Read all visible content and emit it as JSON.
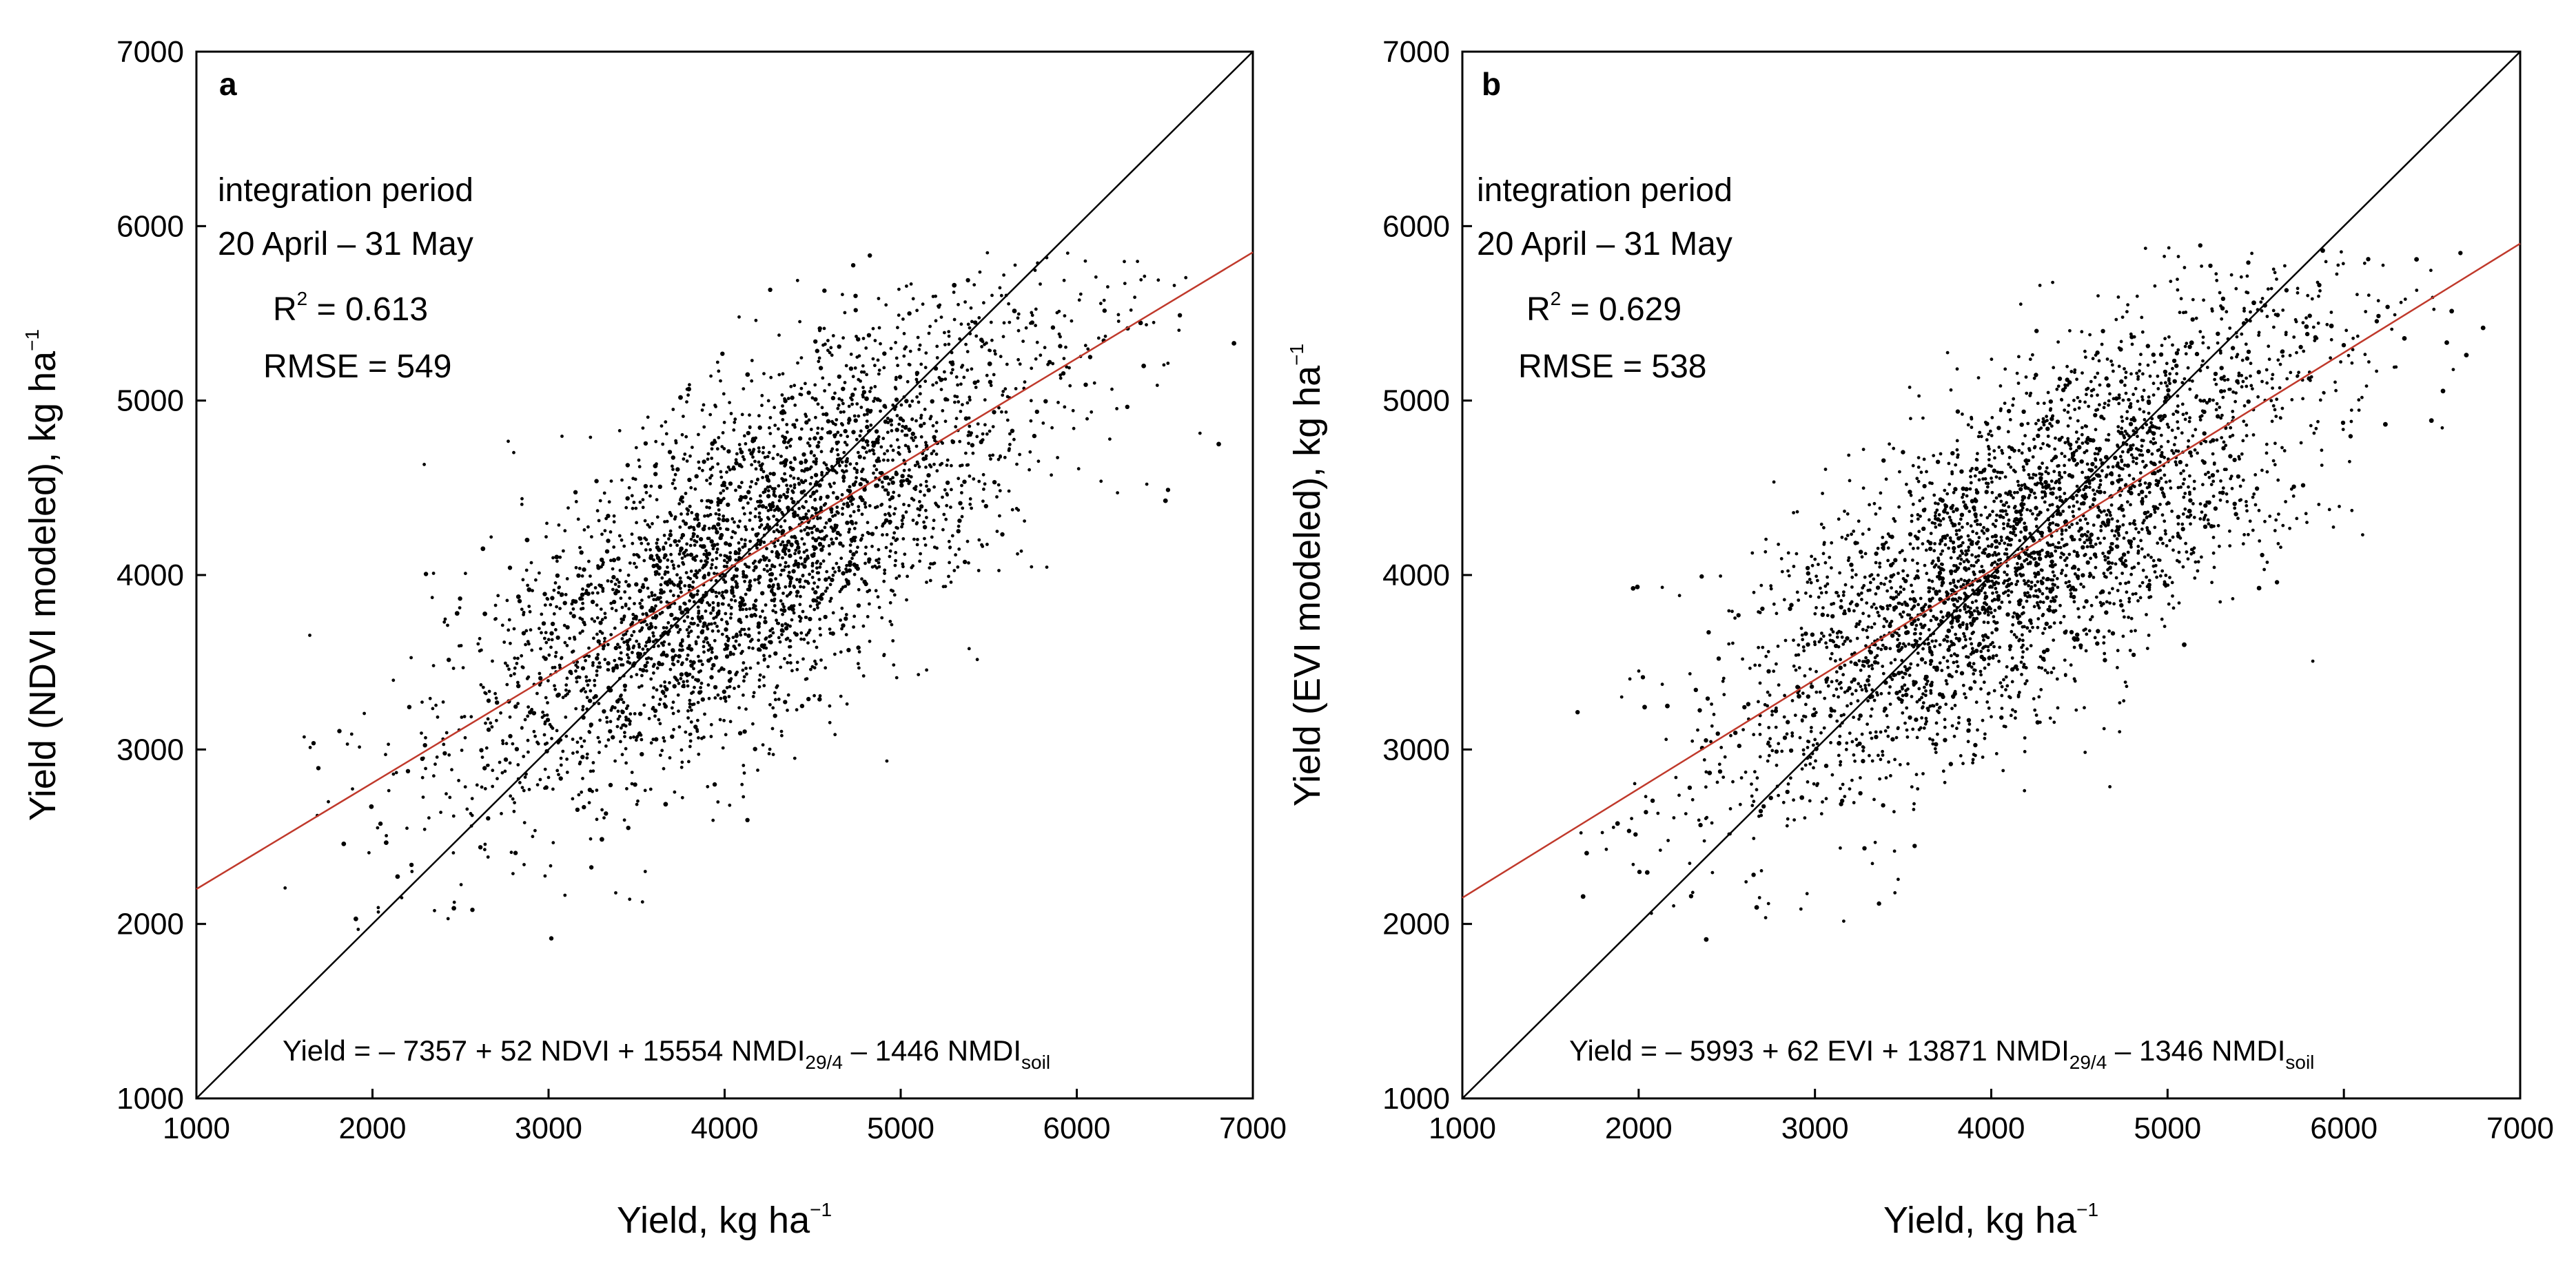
{
  "chart_data": [
    {
      "type": "scatter",
      "panel_label": "a",
      "xlabel": "Yield, kg ha",
      "xlabel_sup": "−1",
      "ylabel": "Yield (NDVI modeled), kg ha",
      "ylabel_sup": "−1",
      "xlim": [
        1000,
        7000
      ],
      "ylim": [
        1000,
        7000
      ],
      "xticks": [
        "1000",
        "2000",
        "3000",
        "4000",
        "5000",
        "6000",
        "7000"
      ],
      "yticks": [
        "1000",
        "2000",
        "3000",
        "4000",
        "5000",
        "6000",
        "7000"
      ],
      "grid": false,
      "annotation_lines": [
        "integration period",
        "20 April – 31 May"
      ],
      "r2_label": "R",
      "r2_sup": "2",
      "r2_value": " = 0.613",
      "rmse": "RMSE = 549",
      "equation": {
        "main": "Yield = – 7357 + 52 NDVI + 15554 NMDI",
        "sub1": "29/4",
        "mid": " – 1446 NMDI",
        "sub2": "soil"
      },
      "one_to_one_line": {
        "x": [
          1000,
          7000
        ],
        "y": [
          1000,
          7000
        ],
        "color": "#000000"
      },
      "fit_line": {
        "x": [
          1000,
          7000
        ],
        "y": [
          2200,
          5850
        ],
        "color": "#c0392b"
      },
      "point_cloud": {
        "n_points": 3400,
        "n_outliers": 40,
        "color": "#000000",
        "x_mean": 4150,
        "x_sd": 850,
        "slope": 0.61,
        "intercept": 1590,
        "residual_sd": 480,
        "x_range": [
          1500,
          6900
        ],
        "y_range": [
          1800,
          5850
        ]
      }
    },
    {
      "type": "scatter",
      "panel_label": "b",
      "xlabel": "Yield, kg ha",
      "xlabel_sup": "−1",
      "ylabel": "Yield (EVI modeled), kg ha",
      "ylabel_sup": "−1",
      "xlim": [
        1000,
        7000
      ],
      "ylim": [
        1000,
        7000
      ],
      "xticks": [
        "1000",
        "2000",
        "3000",
        "4000",
        "5000",
        "6000",
        "7000"
      ],
      "yticks": [
        "1000",
        "2000",
        "3000",
        "4000",
        "5000",
        "6000",
        "7000"
      ],
      "grid": false,
      "annotation_lines": [
        "integration period",
        "20 April – 31 May"
      ],
      "r2_label": "R",
      "r2_sup": "2",
      "r2_value": " = 0.629",
      "rmse": "RMSE = 538",
      "equation": {
        "main": "Yield = – 5993 + 62 EVI + 13871 NMDI",
        "sub1": "29/4",
        "mid": " – 1346 NMDI",
        "sub2": "soil"
      },
      "one_to_one_line": {
        "x": [
          1000,
          7000
        ],
        "y": [
          1000,
          7000
        ],
        "color": "#000000"
      },
      "fit_line": {
        "x": [
          1000,
          7000
        ],
        "y": [
          2150,
          5900
        ],
        "color": "#c0392b"
      },
      "point_cloud": {
        "n_points": 3400,
        "n_outliers": 40,
        "color": "#000000",
        "x_mean": 4150,
        "x_sd": 850,
        "slope": 0.625,
        "intercept": 1525,
        "residual_sd": 470,
        "x_range": [
          1500,
          6900
        ],
        "y_range": [
          1900,
          5900
        ]
      }
    }
  ]
}
